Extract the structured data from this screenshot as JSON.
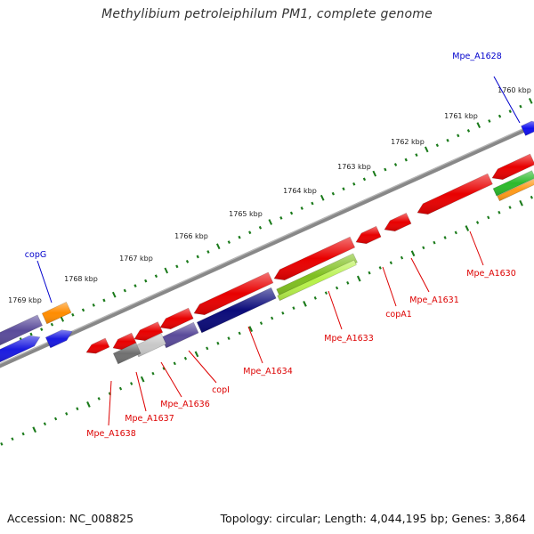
{
  "title": "Methylibium petroleiphilum PM1, complete genome",
  "footer": {
    "accession": "Accession: NC_008825",
    "summary": "Topology: circular; Length: 4,044,195 bp; Genes: 3,864"
  },
  "colors": {
    "backbone": "#888888",
    "ticks": "#1a7a1a",
    "label_forward": "#0000cc",
    "label_reverse": "#dd0000"
  },
  "ticks": [
    "1760 kbp",
    "1761 kbp",
    "1762 kbp",
    "1763 kbp",
    "1764 kbp",
    "1765 kbp",
    "1766 kbp",
    "1767 kbp",
    "1768 kbp",
    "1769 kbp"
  ],
  "gene_labels": [
    {
      "name": "Mpe_A1628",
      "strand": "forward"
    },
    {
      "name": "copG",
      "strand": "forward"
    },
    {
      "name": "Mpe_A1630",
      "strand": "reverse"
    },
    {
      "name": "Mpe_A1631",
      "strand": "reverse"
    },
    {
      "name": "copA1",
      "strand": "reverse"
    },
    {
      "name": "Mpe_A1633",
      "strand": "reverse"
    },
    {
      "name": "Mpe_A1634",
      "strand": "reverse"
    },
    {
      "name": "copI",
      "strand": "reverse"
    },
    {
      "name": "Mpe_A1636",
      "strand": "reverse"
    },
    {
      "name": "Mpe_A1637",
      "strand": "reverse"
    },
    {
      "name": "Mpe_A1638",
      "strand": "reverse"
    }
  ]
}
